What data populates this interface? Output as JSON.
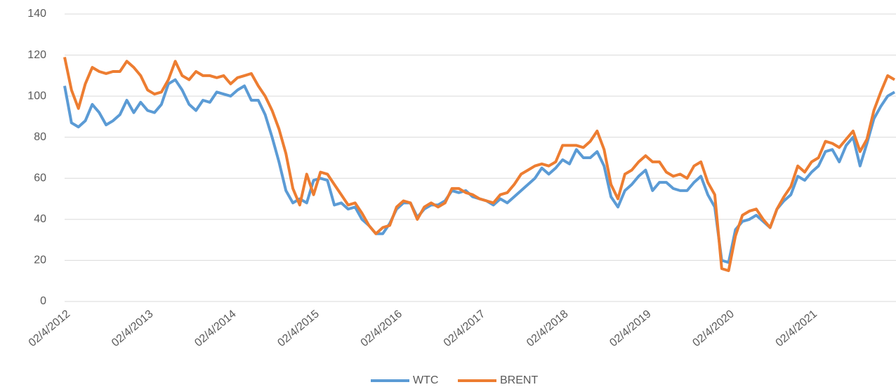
{
  "chart_data": {
    "type": "line",
    "categories": [
      "02/4/2012",
      null,
      null,
      null,
      null,
      null,
      null,
      null,
      null,
      null,
      null,
      null,
      "02/4/2013",
      null,
      null,
      null,
      null,
      null,
      null,
      null,
      null,
      null,
      null,
      null,
      "02/4/2014",
      null,
      null,
      null,
      null,
      null,
      null,
      null,
      null,
      null,
      null,
      null,
      "02/4/2015",
      null,
      null,
      null,
      null,
      null,
      null,
      null,
      null,
      null,
      null,
      null,
      "02/4/2016",
      null,
      null,
      null,
      null,
      null,
      null,
      null,
      null,
      null,
      null,
      null,
      "02/4/2017",
      null,
      null,
      null,
      null,
      null,
      null,
      null,
      null,
      null,
      null,
      null,
      "02/4/2018",
      null,
      null,
      null,
      null,
      null,
      null,
      null,
      null,
      null,
      null,
      null,
      "02/4/2019",
      null,
      null,
      null,
      null,
      null,
      null,
      null,
      null,
      null,
      null,
      null,
      "02/4/2020",
      null,
      null,
      null,
      null,
      null,
      null,
      null,
      null,
      null,
      null,
      null,
      "02/4/2021",
      null,
      null,
      null,
      null,
      null,
      null,
      null,
      null,
      null,
      null,
      null,
      null
    ],
    "series": [
      {
        "name": "WTC",
        "color": "#5b9bd5",
        "values": [
          105,
          87,
          85,
          88,
          96,
          92,
          86,
          88,
          91,
          98,
          92,
          97,
          93,
          92,
          96,
          106,
          108,
          103,
          96,
          93,
          98,
          97,
          102,
          101,
          100,
          103,
          105,
          98,
          98,
          91,
          80,
          68,
          54,
          48,
          50,
          48,
          59,
          60,
          59,
          47,
          48,
          45,
          46,
          40,
          37,
          33,
          33,
          38,
          45,
          48,
          48,
          41,
          45,
          47,
          47,
          49,
          54,
          53,
          54,
          51,
          50,
          49,
          47,
          50,
          48,
          51,
          54,
          57,
          60,
          65,
          62,
          65,
          69,
          67,
          74,
          70,
          70,
          73,
          66,
          51,
          46,
          54,
          57,
          61,
          64,
          54,
          58,
          58,
          55,
          54,
          54,
          58,
          61,
          52,
          46,
          20,
          19,
          35,
          39,
          40,
          42,
          39,
          36,
          45,
          49,
          52,
          61,
          59,
          63,
          66,
          73,
          74,
          68,
          76,
          80,
          66,
          77,
          89,
          95,
          100,
          102
        ]
      },
      {
        "name": "BRENT",
        "color": "#ed7d31",
        "values": [
          119,
          103,
          94,
          106,
          114,
          112,
          111,
          112,
          112,
          117,
          114,
          110,
          103,
          101,
          102,
          108,
          117,
          110,
          108,
          112,
          110,
          110,
          109,
          110,
          106,
          109,
          110,
          111,
          105,
          100,
          93,
          84,
          72,
          55,
          47,
          62,
          52,
          63,
          62,
          57,
          52,
          47,
          48,
          43,
          37,
          33,
          36,
          37,
          46,
          49,
          48,
          40,
          46,
          48,
          46,
          48,
          55,
          55,
          53,
          52,
          50,
          49,
          48,
          52,
          53,
          57,
          62,
          64,
          66,
          67,
          66,
          68,
          76,
          76,
          76,
          75,
          78,
          83,
          74,
          57,
          50,
          62,
          64,
          68,
          71,
          68,
          68,
          63,
          61,
          62,
          60,
          66,
          68,
          58,
          52,
          16,
          15,
          32,
          42,
          44,
          45,
          40,
          36,
          45,
          51,
          56,
          66,
          63,
          68,
          70,
          78,
          77,
          75,
          79,
          83,
          73,
          79,
          93,
          102,
          110,
          108
        ]
      }
    ],
    "ylim": [
      0,
      140
    ],
    "yticks": [
      0,
      20,
      40,
      60,
      80,
      100,
      120,
      140
    ],
    "grid": true,
    "legend": "bottom"
  }
}
